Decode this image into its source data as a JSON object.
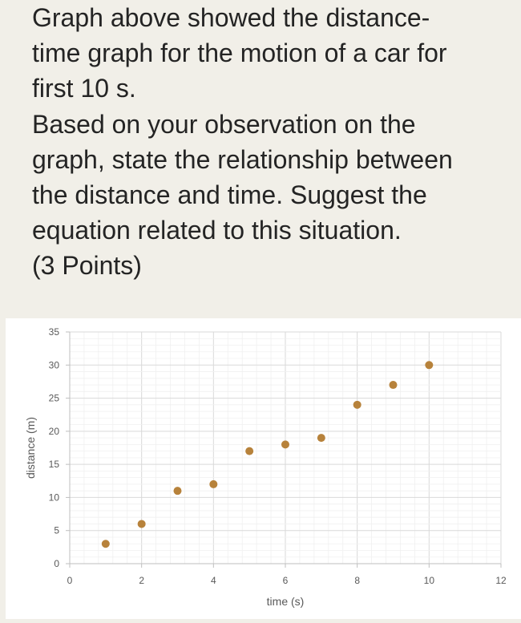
{
  "question": {
    "lines": [
      "Graph above showed the distance-",
      "time graph for the motion of a car for",
      "first 10 s.",
      "Based on your observation on the",
      "graph, state the relationship between",
      "the distance and time. Suggest the",
      "equation related to this situation."
    ],
    "points": "(3 Points)"
  },
  "chart_data": {
    "type": "scatter",
    "xlabel": "time (s)",
    "ylabel": "distance (m)",
    "xlim": [
      0,
      12
    ],
    "ylim": [
      0,
      35
    ],
    "x_ticks": [
      0,
      2,
      4,
      6,
      8,
      10,
      12
    ],
    "y_ticks": [
      0,
      5,
      10,
      15,
      20,
      25,
      30,
      35
    ],
    "grid": true,
    "legend": "none",
    "marker_color": "#b7823b",
    "series": [
      {
        "points": [
          {
            "x": 1,
            "y": 3
          },
          {
            "x": 2,
            "y": 6
          },
          {
            "x": 3,
            "y": 11
          },
          {
            "x": 4,
            "y": 12
          },
          {
            "x": 5,
            "y": 17
          },
          {
            "x": 6,
            "y": 18
          },
          {
            "x": 7,
            "y": 19
          },
          {
            "x": 8,
            "y": 24
          },
          {
            "x": 9,
            "y": 27
          },
          {
            "x": 10,
            "y": 30
          }
        ]
      }
    ]
  }
}
